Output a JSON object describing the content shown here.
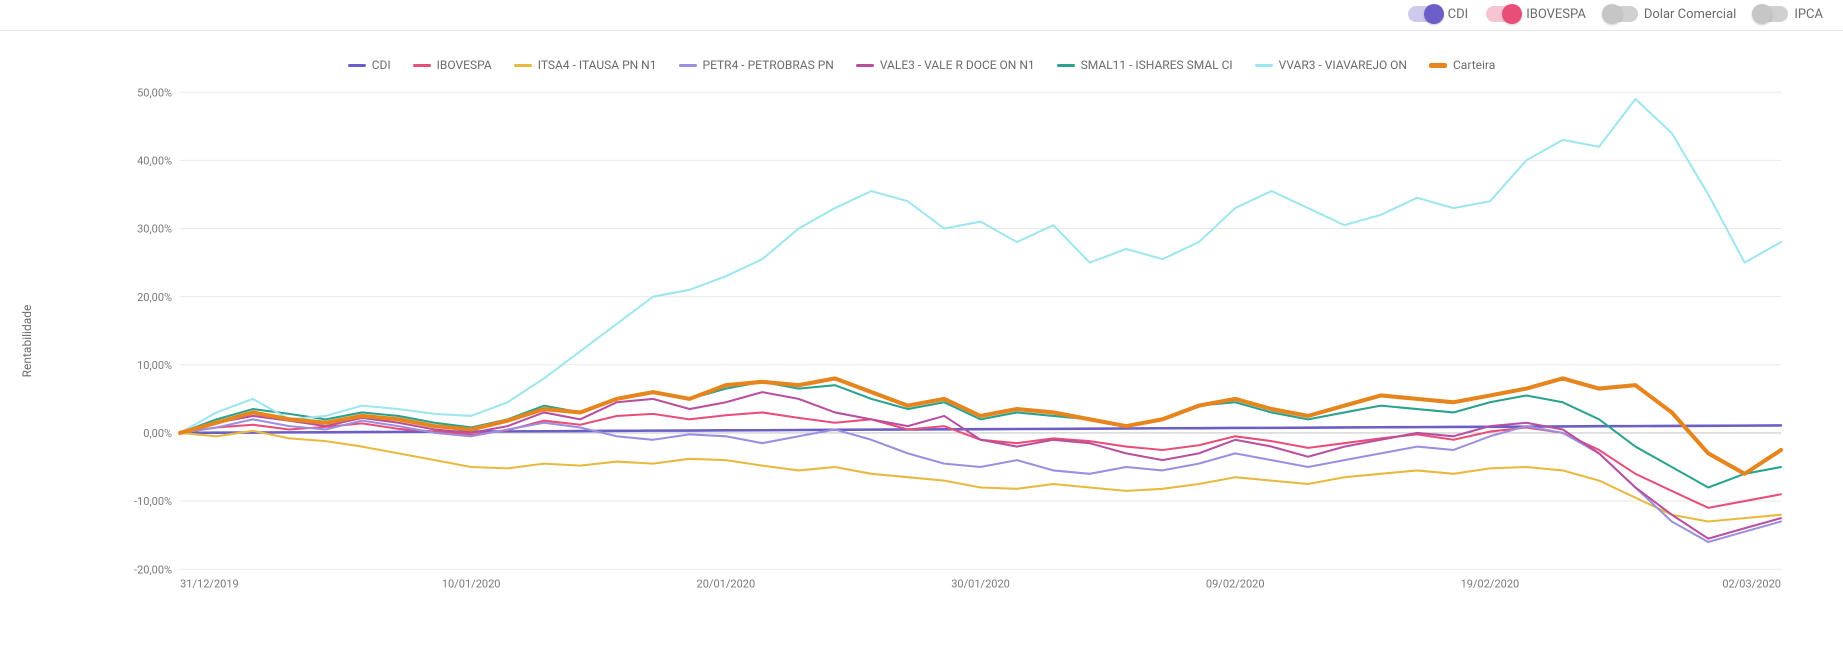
{
  "toggles": [
    {
      "id": "cdi",
      "label": "CDI",
      "on": true,
      "on_color": "#6b5fc7"
    },
    {
      "id": "ibov",
      "label": "IBOVESPA",
      "on": true,
      "on_color": "#e84f78"
    },
    {
      "id": "dolar",
      "label": "Dolar Comercial",
      "on": false,
      "on_color": "#bdbdbd"
    },
    {
      "id": "ipca",
      "label": "IPCA",
      "on": false,
      "on_color": "#bdbdbd"
    }
  ],
  "chart": {
    "type": "line",
    "y_axis_title": "Rentabilidade",
    "background_color": "#ffffff",
    "grid_color": "#e9e9e9",
    "baseline_color": "#c9c9c9",
    "label_color": "#7a7a7a",
    "label_fontsize": 11,
    "legend_fontsize": 12,
    "ylim": [
      -20,
      50
    ],
    "ytick_step": 10,
    "ytick_format_suffix": "%",
    "ytick_decimal_sep": ",",
    "ytick_decimals": 2,
    "x_dates": [
      "31/12/2019",
      "10/01/2020",
      "20/01/2020",
      "30/01/2020",
      "09/02/2020",
      "19/02/2020",
      "02/03/2020"
    ],
    "x_index_range": [
      0,
      44
    ],
    "x_tick_indices": [
      0,
      8,
      15,
      22,
      29,
      36,
      44
    ],
    "series": [
      {
        "id": "cdi",
        "label": "CDI",
        "color": "#6b5fc7",
        "line_width": 2.5,
        "values": [
          0.0,
          0.03,
          0.05,
          0.08,
          0.1,
          0.13,
          0.15,
          0.18,
          0.2,
          0.23,
          0.25,
          0.28,
          0.3,
          0.33,
          0.35,
          0.38,
          0.4,
          0.43,
          0.45,
          0.48,
          0.5,
          0.53,
          0.55,
          0.58,
          0.6,
          0.63,
          0.65,
          0.68,
          0.7,
          0.73,
          0.75,
          0.78,
          0.8,
          0.83,
          0.85,
          0.88,
          0.9,
          0.93,
          0.95,
          0.98,
          1.0,
          1.03,
          1.05,
          1.08,
          1.1
        ]
      },
      {
        "id": "ibov",
        "label": "IBOVESPA",
        "color": "#e84f78",
        "line_width": 2.0,
        "values": [
          0.0,
          0.8,
          1.2,
          0.5,
          0.9,
          1.4,
          0.6,
          0.2,
          -0.3,
          0.4,
          1.8,
          1.2,
          2.5,
          2.8,
          2.0,
          2.6,
          3.0,
          2.2,
          1.5,
          2.0,
          0.5,
          1.0,
          -1.0,
          -1.5,
          -0.8,
          -1.2,
          -2.0,
          -2.5,
          -1.8,
          -0.5,
          -1.2,
          -2.2,
          -1.5,
          -0.8,
          -0.2,
          -1.0,
          0.2,
          0.8,
          0.0,
          -2.5,
          -6.0,
          -8.5,
          -11.0,
          -10.0,
          -9.0
        ]
      },
      {
        "id": "itsa4",
        "label": "ITSA4 - ITAUSA      PN      N1",
        "color": "#e8b93f",
        "line_width": 2.0,
        "values": [
          0.0,
          -0.5,
          0.3,
          -0.8,
          -1.2,
          -2.0,
          -3.0,
          -4.0,
          -5.0,
          -5.2,
          -4.5,
          -4.8,
          -4.2,
          -4.5,
          -3.8,
          -4.0,
          -4.8,
          -5.5,
          -5.0,
          -6.0,
          -6.5,
          -7.0,
          -8.0,
          -8.2,
          -7.5,
          -8.0,
          -8.5,
          -8.2,
          -7.5,
          -6.5,
          -7.0,
          -7.5,
          -6.5,
          -6.0,
          -5.5,
          -6.0,
          -5.2,
          -5.0,
          -5.5,
          -7.0,
          -9.5,
          -12.0,
          -13.0,
          -12.5,
          -12.0
        ]
      },
      {
        "id": "petr4",
        "label": "PETR4 - PETROBRAS   PN",
        "color": "#9c8fe0",
        "line_width": 2.0,
        "values": [
          0.0,
          0.8,
          2.0,
          1.0,
          0.5,
          1.8,
          1.0,
          0.0,
          -0.5,
          0.5,
          1.5,
          0.8,
          -0.5,
          -1.0,
          -0.2,
          -0.5,
          -1.5,
          -0.5,
          0.5,
          -1.0,
          -3.0,
          -4.5,
          -5.0,
          -4.0,
          -5.5,
          -6.0,
          -5.0,
          -5.5,
          -4.5,
          -3.0,
          -4.0,
          -5.0,
          -4.0,
          -3.0,
          -2.0,
          -2.5,
          -0.5,
          1.0,
          0.0,
          -3.0,
          -8.0,
          -13.0,
          -16.0,
          -14.5,
          -13.0
        ]
      },
      {
        "id": "vale3",
        "label": "VALE3 - VALE R DOCE  ON      N1",
        "color": "#b84fa0",
        "line_width": 2.0,
        "values": [
          0.0,
          1.5,
          2.5,
          1.8,
          1.0,
          2.2,
          1.5,
          0.5,
          0.0,
          1.0,
          3.0,
          2.0,
          4.5,
          5.0,
          3.5,
          4.5,
          6.0,
          5.0,
          3.0,
          2.0,
          1.0,
          2.5,
          -1.0,
          -2.0,
          -1.0,
          -1.5,
          -3.0,
          -4.0,
          -3.0,
          -1.0,
          -2.0,
          -3.5,
          -2.0,
          -1.0,
          0.0,
          -0.5,
          1.0,
          1.5,
          0.5,
          -3.0,
          -8.0,
          -12.0,
          -15.5,
          -14.0,
          -12.5
        ]
      },
      {
        "id": "smal11",
        "label": "SMAL11 - ISHARES SMAL CI",
        "color": "#2aa28d",
        "line_width": 2.0,
        "values": [
          0.0,
          2.0,
          3.5,
          2.8,
          2.0,
          3.0,
          2.5,
          1.5,
          0.8,
          2.0,
          4.0,
          3.0,
          5.0,
          6.0,
          5.0,
          6.5,
          7.5,
          6.5,
          7.0,
          5.0,
          3.5,
          4.5,
          2.0,
          3.0,
          2.5,
          2.0,
          1.0,
          2.0,
          4.0,
          4.5,
          3.0,
          2.0,
          3.0,
          4.0,
          3.5,
          3.0,
          4.5,
          5.5,
          4.5,
          2.0,
          -2.0,
          -5.0,
          -8.0,
          -6.0,
          -5.0
        ]
      },
      {
        "id": "vvar3",
        "label": "VVAR3 - VIAVAREJO   ON",
        "color": "#9ee6ef",
        "line_width": 2.0,
        "values": [
          0.0,
          3.0,
          5.0,
          2.0,
          2.5,
          4.0,
          3.5,
          2.8,
          2.5,
          4.5,
          8.0,
          12.0,
          16.0,
          20.0,
          21.0,
          23.0,
          25.5,
          30.0,
          33.0,
          35.5,
          34.0,
          30.0,
          31.0,
          28.0,
          30.5,
          25.0,
          27.0,
          25.5,
          28.0,
          33.0,
          35.5,
          33.0,
          30.5,
          32.0,
          34.5,
          33.0,
          34.0,
          40.0,
          43.0,
          42.0,
          49.0,
          44.0,
          35.0,
          25.0,
          28.0
        ]
      },
      {
        "id": "carteira",
        "label": "Carteira",
        "color": "#e6851e",
        "line_width": 4.0,
        "values": [
          0.0,
          1.5,
          3.0,
          2.0,
          1.5,
          2.5,
          2.0,
          1.0,
          0.5,
          1.8,
          3.5,
          3.0,
          5.0,
          6.0,
          5.0,
          7.0,
          7.5,
          7.0,
          8.0,
          6.0,
          4.0,
          5.0,
          2.5,
          3.5,
          3.0,
          2.0,
          1.0,
          2.0,
          4.0,
          5.0,
          3.5,
          2.5,
          4.0,
          5.5,
          5.0,
          4.5,
          5.5,
          6.5,
          8.0,
          6.5,
          7.0,
          3.0,
          -3.0,
          -6.0,
          -2.5
        ]
      }
    ]
  }
}
